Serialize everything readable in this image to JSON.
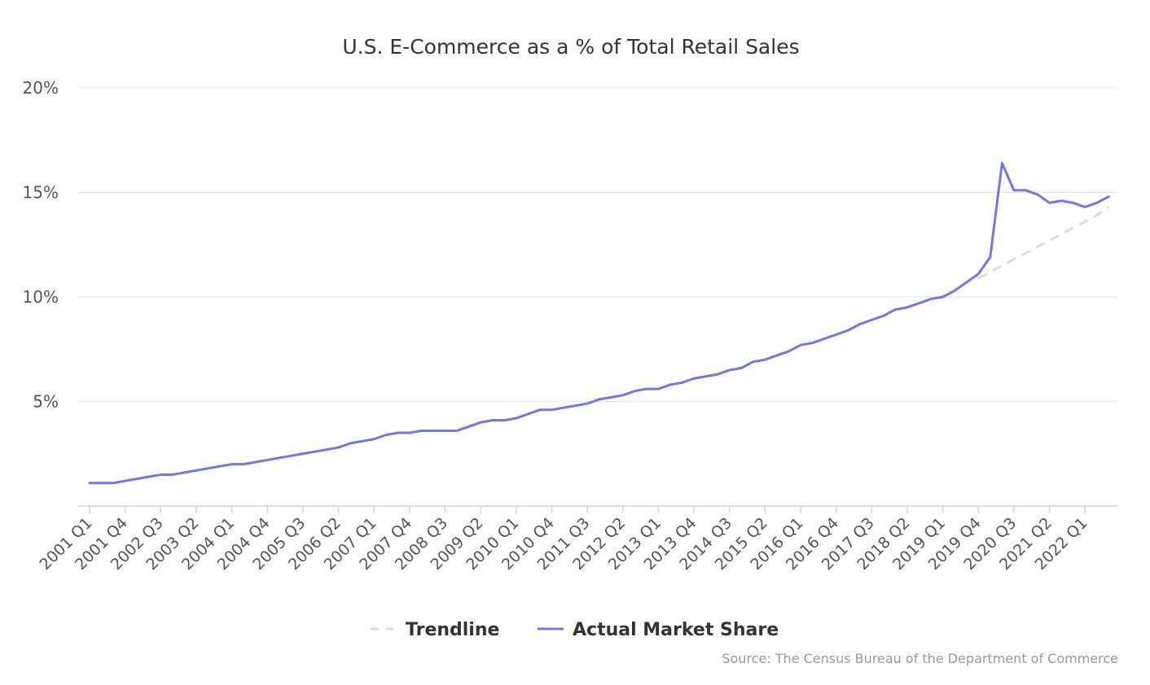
{
  "chart_data": {
    "type": "line",
    "title": "U.S. E-Commerce as a % of Total Retail Sales",
    "credit": "Source: The Census Bureau of the Department of Commerce",
    "ylim": [
      0,
      20
    ],
    "yticks": [
      "5%",
      "10%",
      "15%",
      "20%"
    ],
    "ytick_values": [
      5,
      10,
      15,
      20
    ],
    "grid": true,
    "legend_position": "bottom-center",
    "x_start": "2001 Q1",
    "x_labels": [
      "2001 Q1",
      "2001 Q4",
      "2002 Q3",
      "2003 Q2",
      "2004 Q1",
      "2004 Q4",
      "2005 Q3",
      "2006 Q2",
      "2007 Q1",
      "2007 Q4",
      "2008 Q3",
      "2009 Q2",
      "2010 Q1",
      "2010 Q4",
      "2011 Q3",
      "2012 Q2",
      "2013 Q1",
      "2013 Q4",
      "2014 Q3",
      "2015 Q2",
      "2016 Q1",
      "2016 Q4",
      "2017 Q3",
      "2018 Q2",
      "2019 Q1",
      "2019 Q4",
      "2020 Q3",
      "2021 Q2",
      "2022 Q1"
    ],
    "series": [
      {
        "name": "Trendline",
        "color": "#dddddd",
        "dash": true,
        "start": "2019 Q4",
        "values": [
          10.9,
          11.2,
          11.5,
          11.8,
          12.1,
          12.4,
          12.7,
          13.0,
          13.3,
          13.6,
          13.9,
          14.3
        ]
      },
      {
        "name": "Actual Market Share",
        "color": "#7376e6",
        "dash": false,
        "start": "2001 Q1",
        "values": [
          1.1,
          1.1,
          1.1,
          1.2,
          1.3,
          1.4,
          1.5,
          1.5,
          1.6,
          1.7,
          1.8,
          1.9,
          2.0,
          2.0,
          2.1,
          2.2,
          2.3,
          2.4,
          2.5,
          2.6,
          2.7,
          2.8,
          3.0,
          3.1,
          3.2,
          3.4,
          3.5,
          3.5,
          3.6,
          3.6,
          3.6,
          3.6,
          3.8,
          4.0,
          4.1,
          4.1,
          4.2,
          4.4,
          4.6,
          4.6,
          4.7,
          4.8,
          4.9,
          5.1,
          5.2,
          5.3,
          5.5,
          5.6,
          5.6,
          5.8,
          5.9,
          6.1,
          6.2,
          6.3,
          6.5,
          6.6,
          6.9,
          7.0,
          7.2,
          7.4,
          7.7,
          7.8,
          8.0,
          8.2,
          8.4,
          8.7,
          8.9,
          9.1,
          9.4,
          9.5,
          9.7,
          9.9,
          10.0,
          10.3,
          10.7,
          11.1,
          11.9,
          16.4,
          15.1,
          15.1,
          14.9,
          14.5,
          14.6,
          14.5,
          14.3,
          14.5,
          14.8
        ]
      }
    ]
  }
}
